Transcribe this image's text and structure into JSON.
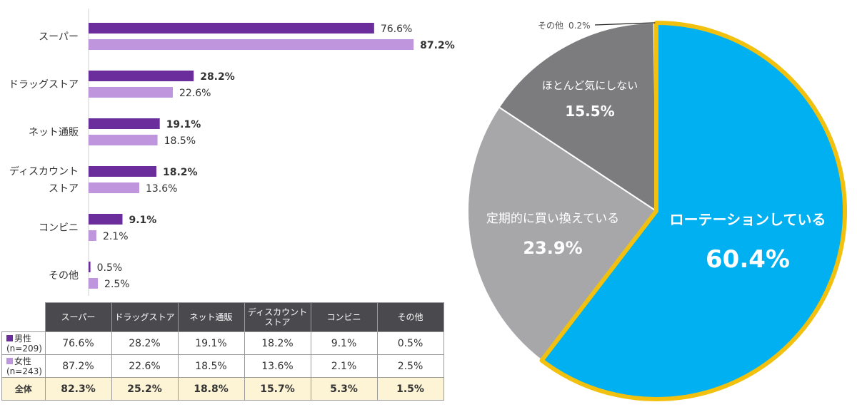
{
  "colors": {
    "male": "#6b2d9b",
    "female": "#bf96dd",
    "rotation": "#00b0f0",
    "rotation_border": "#f2c10f",
    "regular": "#a7a6a9",
    "dontcare": "#7c7b7e",
    "other": "#d9d9d9"
  },
  "chart_data": [
    {
      "type": "bar",
      "orientation": "horizontal",
      "categories": [
        [
          "スーパー"
        ],
        [
          "ドラッグストア"
        ],
        [
          "ネット通販"
        ],
        [
          "ディスカウント",
          "ストア"
        ],
        [
          "コンビニ"
        ],
        [
          "その他"
        ]
      ],
      "series": [
        {
          "key": "male",
          "values": [
            76.6,
            28.2,
            19.1,
            18.2,
            9.1,
            0.5
          ],
          "labels": [
            "76.6%",
            "28.2%",
            "19.1%",
            "18.2%",
            "9.1%",
            "0.5%"
          ]
        },
        {
          "key": "female",
          "values": [
            87.2,
            22.6,
            18.5,
            13.6,
            2.1,
            2.5
          ],
          "labels": [
            "87.2%",
            "22.6%",
            "18.5%",
            "13.6%",
            "2.1%",
            "2.5%"
          ]
        }
      ],
      "emphasis": [
        [
          "normal",
          "bold"
        ],
        [
          "bold",
          "normal"
        ],
        [
          "bold",
          "normal"
        ],
        [
          "bold",
          "normal"
        ],
        [
          "bold",
          "normal"
        ],
        [
          "normal",
          "normal"
        ]
      ],
      "xlim": [
        0,
        100
      ]
    },
    {
      "type": "pie",
      "slices": [
        {
          "label": "ローテーションしている",
          "value": 60.4,
          "value_label": "60.4%",
          "color": "#00b0f0"
        },
        {
          "label": "定期的に買い換えている",
          "value": 23.9,
          "value_label": "23.9%",
          "color": "#a7a6a9"
        },
        {
          "label": "ほとんど気にしない",
          "value": 15.5,
          "value_label": "15.5%",
          "color": "#7c7b7e"
        },
        {
          "label": "その他",
          "value": 0.2,
          "value_label": "0.2%",
          "color": "#d9d9d9"
        }
      ]
    }
  ],
  "table": {
    "headers": [
      "スーパー",
      "ドラッグストア",
      "ネット通販",
      "ディスカウント\nストア",
      "コンビニ",
      "その他"
    ],
    "rows": [
      {
        "label": "男性",
        "sub": "(n=209)",
        "values": [
          "76.6%",
          "28.2%",
          "19.1%",
          "18.2%",
          "9.1%",
          "0.5%"
        ]
      },
      {
        "label": "女性",
        "sub": "(n=243)",
        "values": [
          "87.2%",
          "22.6%",
          "18.5%",
          "13.6%",
          "2.1%",
          "2.5%"
        ]
      },
      {
        "label": "全体",
        "sub": "",
        "values": [
          "82.3%",
          "25.2%",
          "18.8%",
          "15.7%",
          "5.3%",
          "1.5%"
        ]
      }
    ]
  }
}
